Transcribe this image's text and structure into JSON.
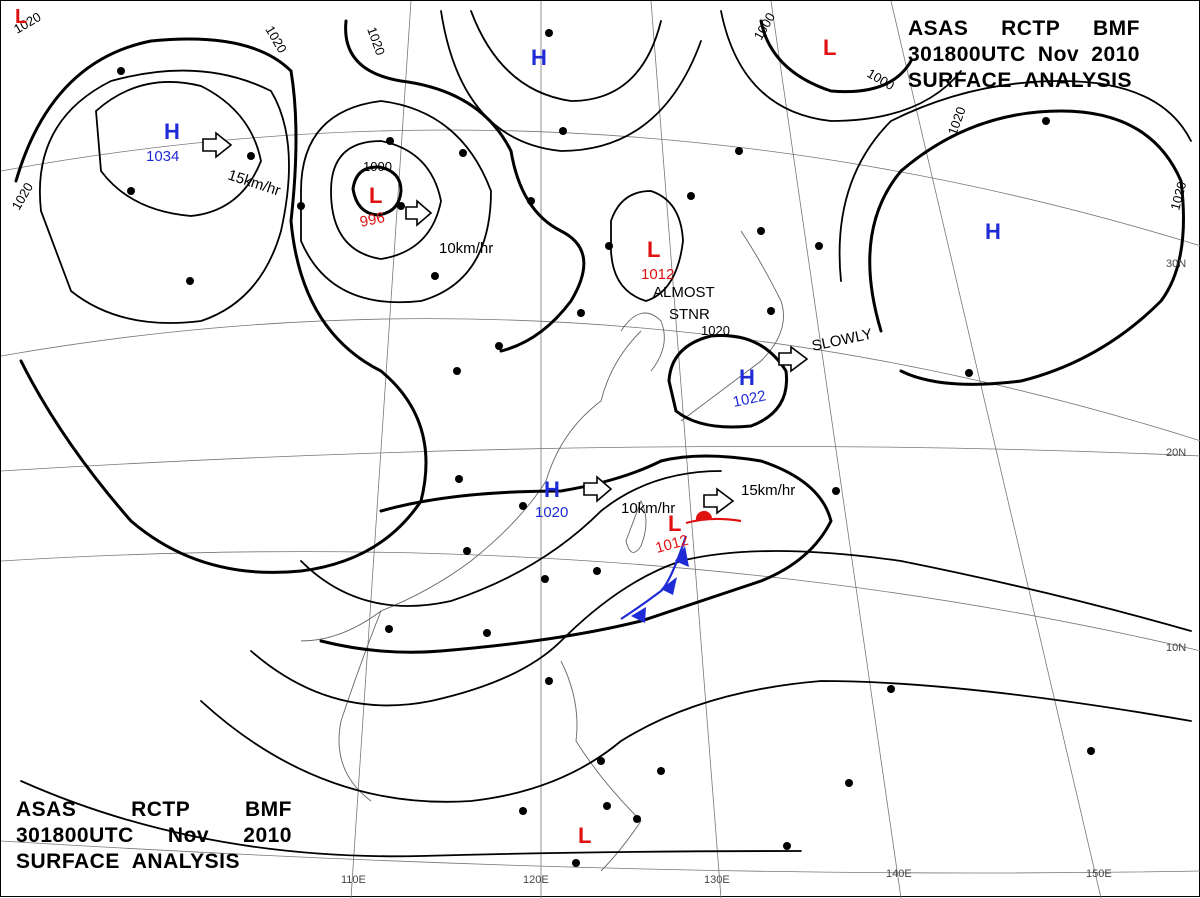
{
  "title": {
    "line1": [
      "ASAS",
      "RCTP",
      "BMF"
    ],
    "line2": [
      "301800UTC",
      "Nov",
      "2010"
    ],
    "line3": "SURFACE  ANALYSIS"
  },
  "pressure_centers": [
    {
      "type": "H",
      "value": "1034",
      "color": "#1f2bd6"
    },
    {
      "type": "L",
      "value": "996",
      "color": "#e01010"
    },
    {
      "type": "H",
      "value": "",
      "color": "#1f2bd6"
    },
    {
      "type": "L",
      "value": "1012",
      "color": "#e01010"
    },
    {
      "type": "L",
      "value": "",
      "color": "#e01010"
    },
    {
      "type": "H",
      "value": "1022",
      "color": "#1f2bd6"
    },
    {
      "type": "H",
      "value": "",
      "color": "#1f2bd6"
    },
    {
      "type": "H",
      "value": "1020",
      "color": "#1f2bd6"
    },
    {
      "type": "L",
      "value": "1012",
      "color": "#e01010"
    },
    {
      "type": "L",
      "value": "",
      "color": "#e01010"
    },
    {
      "type": "L",
      "value": "",
      "color": "#e01010"
    }
  ],
  "motion_labels": [
    "15km/hr",
    "10km/hr",
    "ALMOST",
    "STNR",
    "SLOWLY",
    "10km/hr",
    "15km/hr"
  ],
  "isobar_labels": [
    "1020",
    "1020",
    "1020",
    "1020",
    "1000",
    "1000",
    "1020",
    "1020",
    "1000"
  ],
  "graticule": {
    "longitudes": [
      "110E",
      "120E",
      "130E",
      "140E",
      "150E"
    ],
    "latitudes": [
      "30N",
      "20N",
      "10N"
    ]
  },
  "colors": {
    "high": "#1f2bd6",
    "low": "#e01010",
    "isobar": "#000000",
    "grid": "#555555"
  }
}
